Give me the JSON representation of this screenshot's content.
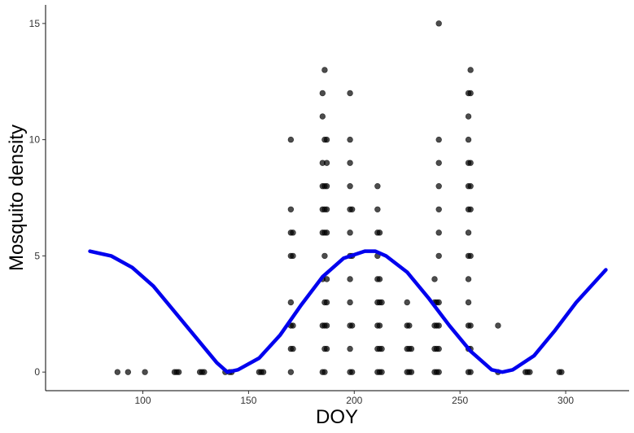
{
  "chart_data": {
    "type": "scatter",
    "xlabel": "DOY",
    "ylabel": "Mosquito density",
    "xlim": [
      54,
      330
    ],
    "ylim": [
      -0.8,
      15.8
    ],
    "x_ticks": [
      100,
      150,
      200,
      250,
      300
    ],
    "y_ticks": [
      0,
      5,
      10,
      15
    ],
    "grid": false,
    "legend": "none",
    "colors": {
      "points": "#000000",
      "curve": "#0000ee"
    },
    "points": [
      [
        88,
        0
      ],
      [
        93,
        0
      ],
      [
        101,
        0
      ],
      [
        115,
        0
      ],
      [
        116,
        0
      ],
      [
        117,
        0
      ],
      [
        127,
        0
      ],
      [
        128,
        0
      ],
      [
        129,
        0
      ],
      [
        139,
        0
      ],
      [
        141,
        0
      ],
      [
        142,
        0
      ],
      [
        155,
        0
      ],
      [
        156,
        0
      ],
      [
        157,
        0
      ],
      [
        170,
        0
      ],
      [
        170,
        1
      ],
      [
        170,
        2
      ],
      [
        170,
        3
      ],
      [
        170,
        5
      ],
      [
        170,
        6
      ],
      [
        170,
        7
      ],
      [
        170,
        10
      ],
      [
        171,
        1
      ],
      [
        171,
        2
      ],
      [
        171,
        5
      ],
      [
        171,
        6
      ],
      [
        185,
        0
      ],
      [
        185,
        2
      ],
      [
        185,
        4
      ],
      [
        185,
        6
      ],
      [
        185,
        7
      ],
      [
        185,
        8
      ],
      [
        185,
        9
      ],
      [
        185,
        11
      ],
      [
        185,
        12
      ],
      [
        186,
        0
      ],
      [
        186,
        1
      ],
      [
        186,
        2
      ],
      [
        186,
        3
      ],
      [
        186,
        5
      ],
      [
        186,
        6
      ],
      [
        186,
        7
      ],
      [
        186,
        8
      ],
      [
        186,
        10
      ],
      [
        186,
        13
      ],
      [
        187,
        1
      ],
      [
        187,
        2
      ],
      [
        187,
        3
      ],
      [
        187,
        4
      ],
      [
        187,
        6
      ],
      [
        187,
        7
      ],
      [
        187,
        8
      ],
      [
        187,
        9
      ],
      [
        187,
        10
      ],
      [
        198,
        0
      ],
      [
        198,
        1
      ],
      [
        198,
        2
      ],
      [
        198,
        3
      ],
      [
        198,
        4
      ],
      [
        198,
        5
      ],
      [
        198,
        6
      ],
      [
        198,
        7
      ],
      [
        198,
        8
      ],
      [
        198,
        9
      ],
      [
        198,
        10
      ],
      [
        198,
        12
      ],
      [
        199,
        0
      ],
      [
        199,
        2
      ],
      [
        199,
        5
      ],
      [
        199,
        7
      ],
      [
        211,
        0
      ],
      [
        211,
        1
      ],
      [
        211,
        2
      ],
      [
        211,
        3
      ],
      [
        211,
        4
      ],
      [
        211,
        5
      ],
      [
        211,
        6
      ],
      [
        211,
        7
      ],
      [
        211,
        8
      ],
      [
        212,
        0
      ],
      [
        212,
        1
      ],
      [
        212,
        2
      ],
      [
        212,
        3
      ],
      [
        212,
        4
      ],
      [
        212,
        6
      ],
      [
        213,
        0
      ],
      [
        213,
        1
      ],
      [
        213,
        3
      ],
      [
        225,
        0
      ],
      [
        225,
        1
      ],
      [
        225,
        2
      ],
      [
        225,
        3
      ],
      [
        226,
        0
      ],
      [
        226,
        1
      ],
      [
        226,
        2
      ],
      [
        227,
        0
      ],
      [
        227,
        1
      ],
      [
        238,
        0
      ],
      [
        238,
        1
      ],
      [
        238,
        2
      ],
      [
        238,
        3
      ],
      [
        238,
        4
      ],
      [
        239,
        0
      ],
      [
        239,
        1
      ],
      [
        239,
        2
      ],
      [
        239,
        3
      ],
      [
        240,
        0
      ],
      [
        240,
        1
      ],
      [
        240,
        2
      ],
      [
        240,
        3
      ],
      [
        240,
        5
      ],
      [
        240,
        6
      ],
      [
        240,
        7
      ],
      [
        240,
        8
      ],
      [
        240,
        9
      ],
      [
        240,
        10
      ],
      [
        240,
        15
      ],
      [
        254,
        0
      ],
      [
        254,
        1
      ],
      [
        254,
        2
      ],
      [
        254,
        3
      ],
      [
        254,
        4
      ],
      [
        254,
        5
      ],
      [
        254,
        6
      ],
      [
        254,
        7
      ],
      [
        254,
        8
      ],
      [
        254,
        9
      ],
      [
        254,
        10
      ],
      [
        254,
        11
      ],
      [
        254,
        12
      ],
      [
        255,
        0
      ],
      [
        255,
        1
      ],
      [
        255,
        2
      ],
      [
        255,
        5
      ],
      [
        255,
        7
      ],
      [
        255,
        8
      ],
      [
        255,
        9
      ],
      [
        255,
        12
      ],
      [
        255,
        13
      ],
      [
        268,
        0
      ],
      [
        268,
        2
      ],
      [
        281,
        0
      ],
      [
        282,
        0
      ],
      [
        283,
        0
      ],
      [
        297,
        0
      ],
      [
        298,
        0
      ]
    ],
    "curve": {
      "x": [
        75,
        85,
        95,
        105,
        115,
        125,
        135,
        140,
        145,
        155,
        165,
        175,
        185,
        195,
        205,
        210,
        215,
        225,
        235,
        245,
        255,
        265,
        270,
        275,
        285,
        295,
        305,
        319
      ],
      "y": [
        5.2,
        5.0,
        4.5,
        3.7,
        2.6,
        1.5,
        0.4,
        0.0,
        0.1,
        0.6,
        1.6,
        2.9,
        4.1,
        4.9,
        5.2,
        5.2,
        5.0,
        4.3,
        3.2,
        2.0,
        0.9,
        0.1,
        0.0,
        0.1,
        0.7,
        1.8,
        3.0,
        4.4
      ]
    }
  }
}
